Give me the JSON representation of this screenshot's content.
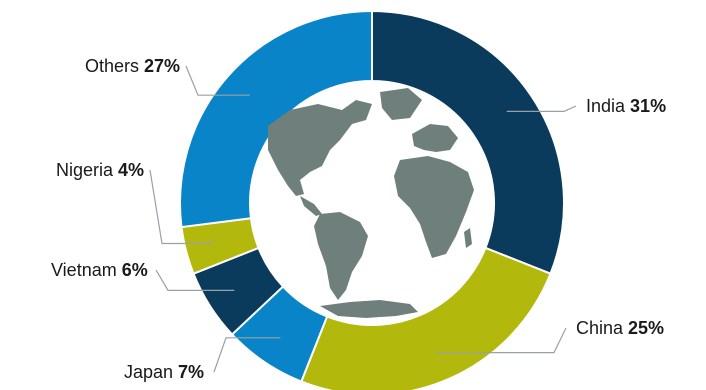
{
  "chart_data": {
    "type": "pie",
    "style": "donut",
    "title": "",
    "categories": [
      "India",
      "China",
      "Japan",
      "Vietnam",
      "Nigeria",
      "Others"
    ],
    "values": [
      31,
      25,
      7,
      6,
      4,
      27
    ],
    "unit": "%",
    "value_labels": [
      "31%",
      "25%",
      "7%",
      "6%",
      "4%",
      "27%"
    ],
    "colors": [
      "#0a3a5c",
      "#b3b80d",
      "#0a84c8",
      "#0a3a5c",
      "#b3b80d",
      "#0a84c8"
    ],
    "center_image": "world-globe",
    "legend": "callouts"
  },
  "theme": {
    "globe_ocean": "#ffffff",
    "globe_land": "#6f7f7c",
    "leader_line": "#9aa0a3",
    "separator": "#ffffff"
  }
}
